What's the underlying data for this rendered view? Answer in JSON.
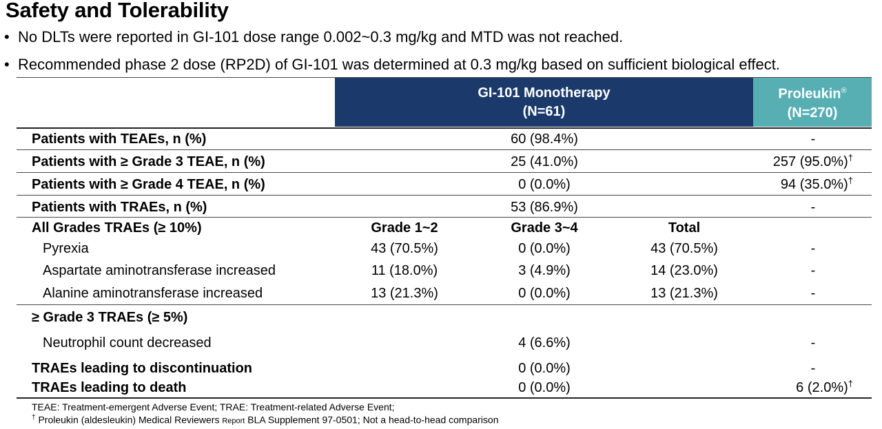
{
  "title": "Safety and Tolerability",
  "bullets": [
    "No DLTs were reported in GI-101 dose range 0.002~0.3 mg/kg and MTD was not reached.",
    "Recommended phase 2 dose (RP2D) of GI-101 was determined at 0.3 mg/kg based on sufficient biological effect."
  ],
  "bullet_marker": "•",
  "header": {
    "gi_title": "GI-101 Monotherapy",
    "gi_n": "(N=61)",
    "pro_title": "Proleukin",
    "pro_reg": "®",
    "pro_n": "(N=270)"
  },
  "rows": {
    "teae": {
      "label": "Patients with TEAEs, n (%)",
      "gi": "60 (98.4%)",
      "pro": "-"
    },
    "g3teae": {
      "label": "Patients with ≥ Grade 3 TEAE, n (%)",
      "gi": "25 (41.0%)",
      "pro": "257 (95.0%)",
      "pro_mark": "†"
    },
    "g4teae": {
      "label": "Patients with ≥ Grade 4 TEAE, n (%)",
      "gi": "0 (0.0%)",
      "pro": "94 (35.0%)",
      "pro_mark": "†"
    },
    "trae": {
      "label": "Patients with TRAEs, n (%)",
      "gi": "53 (86.9%)",
      "pro": "-"
    },
    "allgrades": {
      "label": "All Grades TRAEs (≥ 10%)",
      "col_g12": "Grade 1~2",
      "col_g34": "Grade 3~4",
      "col_total": "Total"
    },
    "pyrexia": {
      "label": "Pyrexia",
      "g12": "43 (70.5%)",
      "g34": "0 (0.0%)",
      "total": "43 (70.5%)",
      "pro": "-"
    },
    "ast": {
      "label": "Aspartate aminotransferase increased",
      "g12": "11 (18.0%)",
      "g34": "3 (4.9%)",
      "total": "14 (23.0%)",
      "pro": "-"
    },
    "alt": {
      "label": "Alanine aminotransferase increased",
      "g12": "13 (21.3%)",
      "g34": "0 (0.0%)",
      "total": "13 (21.3%)",
      "pro": "-"
    },
    "g3trae": {
      "label": "≥ Grade 3 TRAEs (≥ 5%)"
    },
    "neutro": {
      "label": "Neutrophil count decreased",
      "gi": "4 (6.6%)",
      "pro": "-"
    },
    "disc": {
      "label": "TRAEs leading to discontinuation",
      "gi": "0 (0.0%)",
      "pro": "-"
    },
    "death": {
      "label": "TRAEs leading to death",
      "gi": "0 (0.0%)",
      "pro": "6 (2.0%)",
      "pro_mark": "†"
    }
  },
  "footnotes": {
    "line1": "TEAE: Treatment-emergent Adverse Event; TRAE: Treatment-related Adverse Event;",
    "line2_mark": "†",
    "line2_a": "Proleukin (aldesleukin) Medical Reviewers",
    "line2_b": "Report",
    "line2_c": "BLA Supplement 97-0501; Not a head-to-head comparison"
  }
}
